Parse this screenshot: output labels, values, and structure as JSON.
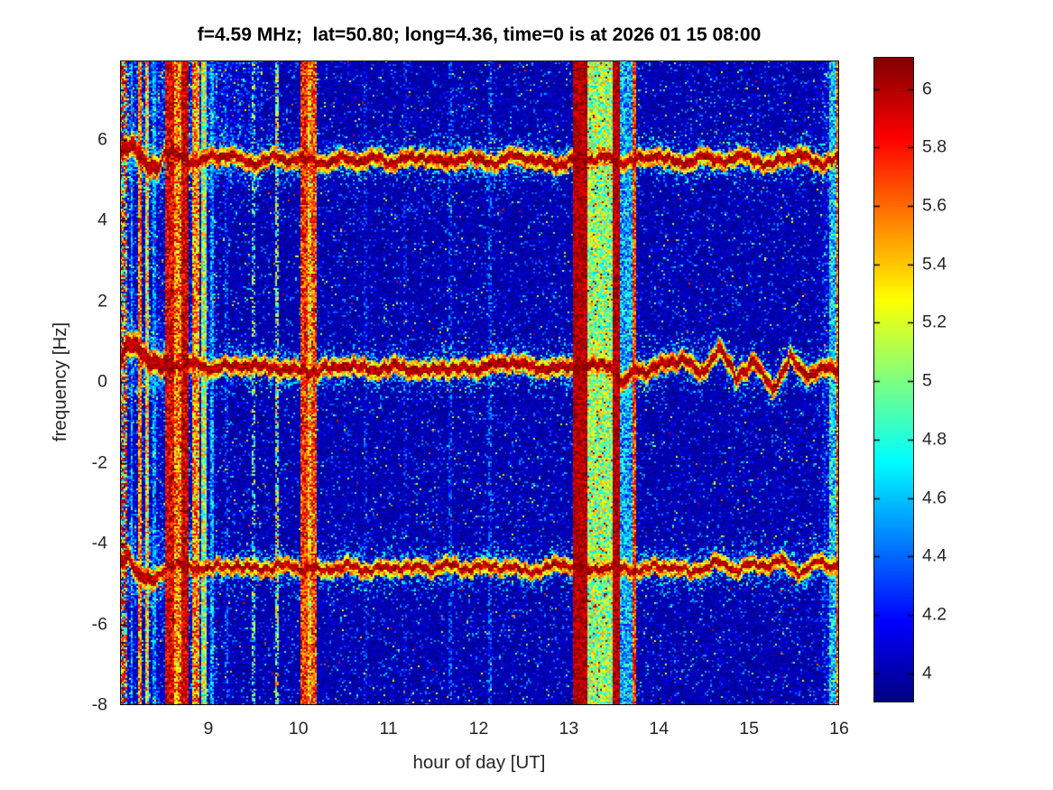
{
  "chart_data": {
    "type": "heatmap",
    "title": "f=4.59 MHz;  lat=50.80; long=4.36, time=0 is at 2026 01 15 08:00",
    "xlabel": "hour of day [UT]",
    "ylabel": "frequency [Hz]",
    "x_range": [
      8.02,
      16.0
    ],
    "y_range": [
      -8.0,
      7.97
    ],
    "x_ticks": [
      9,
      10,
      11,
      12,
      13,
      14,
      15,
      16
    ],
    "x_tick_labels": [
      "9",
      "10",
      "11",
      "12",
      "13",
      "14",
      "15",
      "16"
    ],
    "y_ticks": [
      6,
      4,
      2,
      0,
      -2,
      -4,
      -6,
      -8
    ],
    "y_tick_labels": [
      "6",
      "4",
      "2",
      "0",
      "-2",
      "-4",
      "-6",
      "-8"
    ],
    "colormap": "jet",
    "color_range": [
      3.9,
      6.11
    ],
    "colorbar_ticks": [
      6,
      5.8,
      5.6,
      5.4,
      5.2,
      5,
      4.8,
      4.6,
      4.4,
      4.2,
      4
    ],
    "colorbar_tick_labels": [
      "6",
      "5.8",
      "5.6",
      "5.4",
      "5.2",
      "5",
      "4.8",
      "4.6",
      "4.4",
      "4.2",
      "4"
    ],
    "grid": false,
    "legend": "colorbar-right",
    "noise_floor": {
      "base": 4.0,
      "sd": 0.065,
      "speckle": {
        "cyan_prob": 0.1,
        "cyan_amp": 0.42,
        "green_prob": 0.012,
        "green_amp": 0.85,
        "red_prob": 0.002
      }
    },
    "noisy_regions": [
      {
        "hours": [
          8.02,
          9.1
        ],
        "freqs": [
          -8.0,
          7.97
        ],
        "speckle_mult": 2.2,
        "base_add": 0.03
      },
      {
        "hours": [
          8.02,
          9.6
        ],
        "freqs": [
          4.8,
          7.97
        ],
        "speckle_mult": 2.4,
        "base_add": 0.04
      },
      {
        "hours": [
          15.8,
          16.0
        ],
        "freqs": [
          -8.0,
          7.97
        ],
        "speckle_mult": 2.8,
        "base_add": 0.05
      },
      {
        "hours": [
          8.02,
          8.9
        ],
        "freqs": [
          -5.6,
          -3.6
        ],
        "speckle_mult": 2.4,
        "base_add": 0.04
      },
      {
        "hours": [
          8.02,
          8.9
        ],
        "freqs": [
          -0.4,
          1.5
        ],
        "speckle_mult": 2.4,
        "base_add": 0.04
      }
    ],
    "doppler_traces": [
      {
        "name": "upper-doppler-trace (~+5.5 Hz)",
        "core_halfwidth": 0.1,
        "thick_until": 8.45,
        "points": [
          [
            8.02,
            5.75
          ],
          [
            8.1,
            5.88
          ],
          [
            8.18,
            5.86
          ],
          [
            8.26,
            5.45
          ],
          [
            8.34,
            5.28
          ],
          [
            8.44,
            5.3
          ],
          [
            8.52,
            5.68
          ],
          [
            8.62,
            5.62
          ],
          [
            8.8,
            5.52
          ],
          [
            9.0,
            5.58
          ],
          [
            9.2,
            5.55
          ],
          [
            9.5,
            5.48
          ],
          [
            9.8,
            5.55
          ],
          [
            10.1,
            5.52
          ],
          [
            10.4,
            5.45
          ],
          [
            10.7,
            5.52
          ],
          [
            11.0,
            5.48
          ],
          [
            11.3,
            5.55
          ],
          [
            11.6,
            5.45
          ],
          [
            11.9,
            5.52
          ],
          [
            12.2,
            5.48
          ],
          [
            12.5,
            5.58
          ],
          [
            12.8,
            5.45
          ],
          [
            13.1,
            5.52
          ],
          [
            13.4,
            5.55
          ],
          [
            13.7,
            5.42
          ],
          [
            13.95,
            5.65
          ],
          [
            14.2,
            5.35
          ],
          [
            14.45,
            5.62
          ],
          [
            14.7,
            5.45
          ],
          [
            14.95,
            5.58
          ],
          [
            15.2,
            5.4
          ],
          [
            15.45,
            5.6
          ],
          [
            15.7,
            5.45
          ],
          [
            15.9,
            5.52
          ],
          [
            16.0,
            5.62
          ]
        ]
      },
      {
        "name": "center-doppler-trace (~+0.35 Hz)",
        "core_halfwidth": 0.11,
        "thick_until": 8.6,
        "points": [
          [
            8.02,
            0.5
          ],
          [
            8.1,
            0.85
          ],
          [
            8.2,
            0.88
          ],
          [
            8.32,
            0.55
          ],
          [
            8.5,
            0.42
          ],
          [
            8.7,
            0.5
          ],
          [
            9.0,
            0.38
          ],
          [
            9.3,
            0.42
          ],
          [
            9.6,
            0.32
          ],
          [
            9.9,
            0.4
          ],
          [
            10.2,
            0.32
          ],
          [
            10.5,
            0.38
          ],
          [
            10.8,
            0.3
          ],
          [
            11.1,
            0.36
          ],
          [
            11.4,
            0.3
          ],
          [
            11.7,
            0.38
          ],
          [
            12.0,
            0.32
          ],
          [
            12.3,
            0.48
          ],
          [
            12.6,
            0.4
          ],
          [
            12.9,
            0.34
          ],
          [
            13.2,
            0.42
          ],
          [
            13.45,
            0.38
          ],
          [
            13.58,
            -0.12
          ],
          [
            13.75,
            0.3
          ],
          [
            14.0,
            0.38
          ],
          [
            14.25,
            0.68
          ],
          [
            14.45,
            0.15
          ],
          [
            14.65,
            0.85
          ],
          [
            14.85,
            0.05
          ],
          [
            15.05,
            0.55
          ],
          [
            15.25,
            -0.18
          ],
          [
            15.45,
            0.58
          ],
          [
            15.65,
            0.15
          ],
          [
            15.85,
            0.4
          ],
          [
            16.0,
            0.32
          ]
        ]
      },
      {
        "name": "lower-doppler-trace (~-4.6 Hz)",
        "core_halfwidth": 0.08,
        "thick_until": 8.45,
        "points": [
          [
            8.02,
            -4.45
          ],
          [
            8.12,
            -4.3
          ],
          [
            8.25,
            -4.85
          ],
          [
            8.4,
            -4.95
          ],
          [
            8.55,
            -4.6
          ],
          [
            8.75,
            -4.52
          ],
          [
            9.0,
            -4.62
          ],
          [
            9.3,
            -4.55
          ],
          [
            9.6,
            -4.62
          ],
          [
            9.9,
            -4.55
          ],
          [
            10.2,
            -4.65
          ],
          [
            10.5,
            -4.58
          ],
          [
            10.8,
            -4.65
          ],
          [
            11.1,
            -4.58
          ],
          [
            11.4,
            -4.62
          ],
          [
            11.7,
            -4.55
          ],
          [
            12.0,
            -4.62
          ],
          [
            12.3,
            -4.58
          ],
          [
            12.6,
            -4.65
          ],
          [
            12.9,
            -4.55
          ],
          [
            13.2,
            -4.6
          ],
          [
            13.5,
            -4.55
          ],
          [
            13.8,
            -4.62
          ],
          [
            14.1,
            -4.5
          ],
          [
            14.35,
            -4.72
          ],
          [
            14.6,
            -4.45
          ],
          [
            14.85,
            -4.65
          ],
          [
            15.1,
            -4.52
          ],
          [
            15.35,
            -4.38
          ],
          [
            15.55,
            -4.68
          ],
          [
            15.75,
            -4.48
          ],
          [
            15.9,
            -4.55
          ],
          [
            16.0,
            -4.38
          ]
        ]
      }
    ],
    "interference_stripes": [
      {
        "h0": 8.02,
        "h1": 8.1,
        "style": "rainbow"
      },
      {
        "h0": 8.13,
        "h1": 8.17,
        "level": 4.5,
        "spread": 0.35
      },
      {
        "h0": 8.21,
        "h1": 8.26,
        "level": 5.55,
        "spread": 0.45
      },
      {
        "h0": 8.3,
        "h1": 8.35,
        "level": 5.3,
        "spread": 0.5
      },
      {
        "h0": 8.38,
        "h1": 8.42,
        "level": 4.45,
        "spread": 0.35
      },
      {
        "h0": 8.52,
        "h1": 8.62,
        "level": 5.9,
        "spread": 0.3
      },
      {
        "h0": 8.62,
        "h1": 8.7,
        "level": 5.55,
        "spread": 0.5
      },
      {
        "h0": 8.7,
        "h1": 8.79,
        "level": 5.95,
        "spread": 0.28
      },
      {
        "h0": 8.83,
        "h1": 8.89,
        "level": 5.5,
        "spread": 0.5
      },
      {
        "h0": 8.93,
        "h1": 8.98,
        "level": 5.1,
        "spread": 0.5
      },
      {
        "h0": 9.02,
        "h1": 9.06,
        "level": 4.5,
        "spread": 0.4
      },
      {
        "h0": 9.18,
        "h1": 9.21,
        "level": 4.3,
        "spread": 0.3,
        "prob": 0.5
      },
      {
        "h0": 9.49,
        "h1": 9.53,
        "level": 4.9,
        "spread": 0.5,
        "prob": 0.5
      },
      {
        "h0": 9.75,
        "h1": 9.79,
        "level": 5.1,
        "spread": 0.55,
        "prob": 0.7
      },
      {
        "h0": 10.02,
        "h1": 10.11,
        "level": 5.75,
        "spread": 0.35
      },
      {
        "h0": 10.11,
        "h1": 10.15,
        "level": 5.4,
        "spread": 0.5
      },
      {
        "h0": 10.15,
        "h1": 10.2,
        "level": 5.7,
        "spread": 0.4
      },
      {
        "h0": 10.72,
        "h1": 10.76,
        "level": 4.2,
        "spread": 0.3,
        "prob": 0.5
      },
      {
        "h0": 11.17,
        "h1": 11.21,
        "level": 4.15,
        "spread": 0.3,
        "prob": 0.5
      },
      {
        "h0": 11.67,
        "h1": 11.71,
        "level": 4.3,
        "spread": 0.3,
        "prob": 0.55
      },
      {
        "h0": 12.1,
        "h1": 12.14,
        "level": 4.35,
        "spread": 0.3,
        "prob": 0.55
      },
      {
        "h0": 13.05,
        "h1": 13.2,
        "level": 6.0,
        "spread": 0.18
      },
      {
        "h0": 13.2,
        "h1": 13.48,
        "level": 5.05,
        "spread": 0.45,
        "red_dots": 0.035
      },
      {
        "h0": 13.48,
        "h1": 13.57,
        "level": 6.0,
        "spread": 0.18
      },
      {
        "h0": 13.57,
        "h1": 13.7,
        "level": 4.55,
        "spread": 0.4
      },
      {
        "h0": 13.7,
        "h1": 13.75,
        "level": 5.7,
        "spread": 0.35
      },
      {
        "h0": 15.88,
        "h1": 15.96,
        "level": 4.6,
        "spread": 0.45
      },
      {
        "h0": 15.96,
        "h1": 16.01,
        "level": 5.7,
        "spread": 0.45
      }
    ]
  }
}
